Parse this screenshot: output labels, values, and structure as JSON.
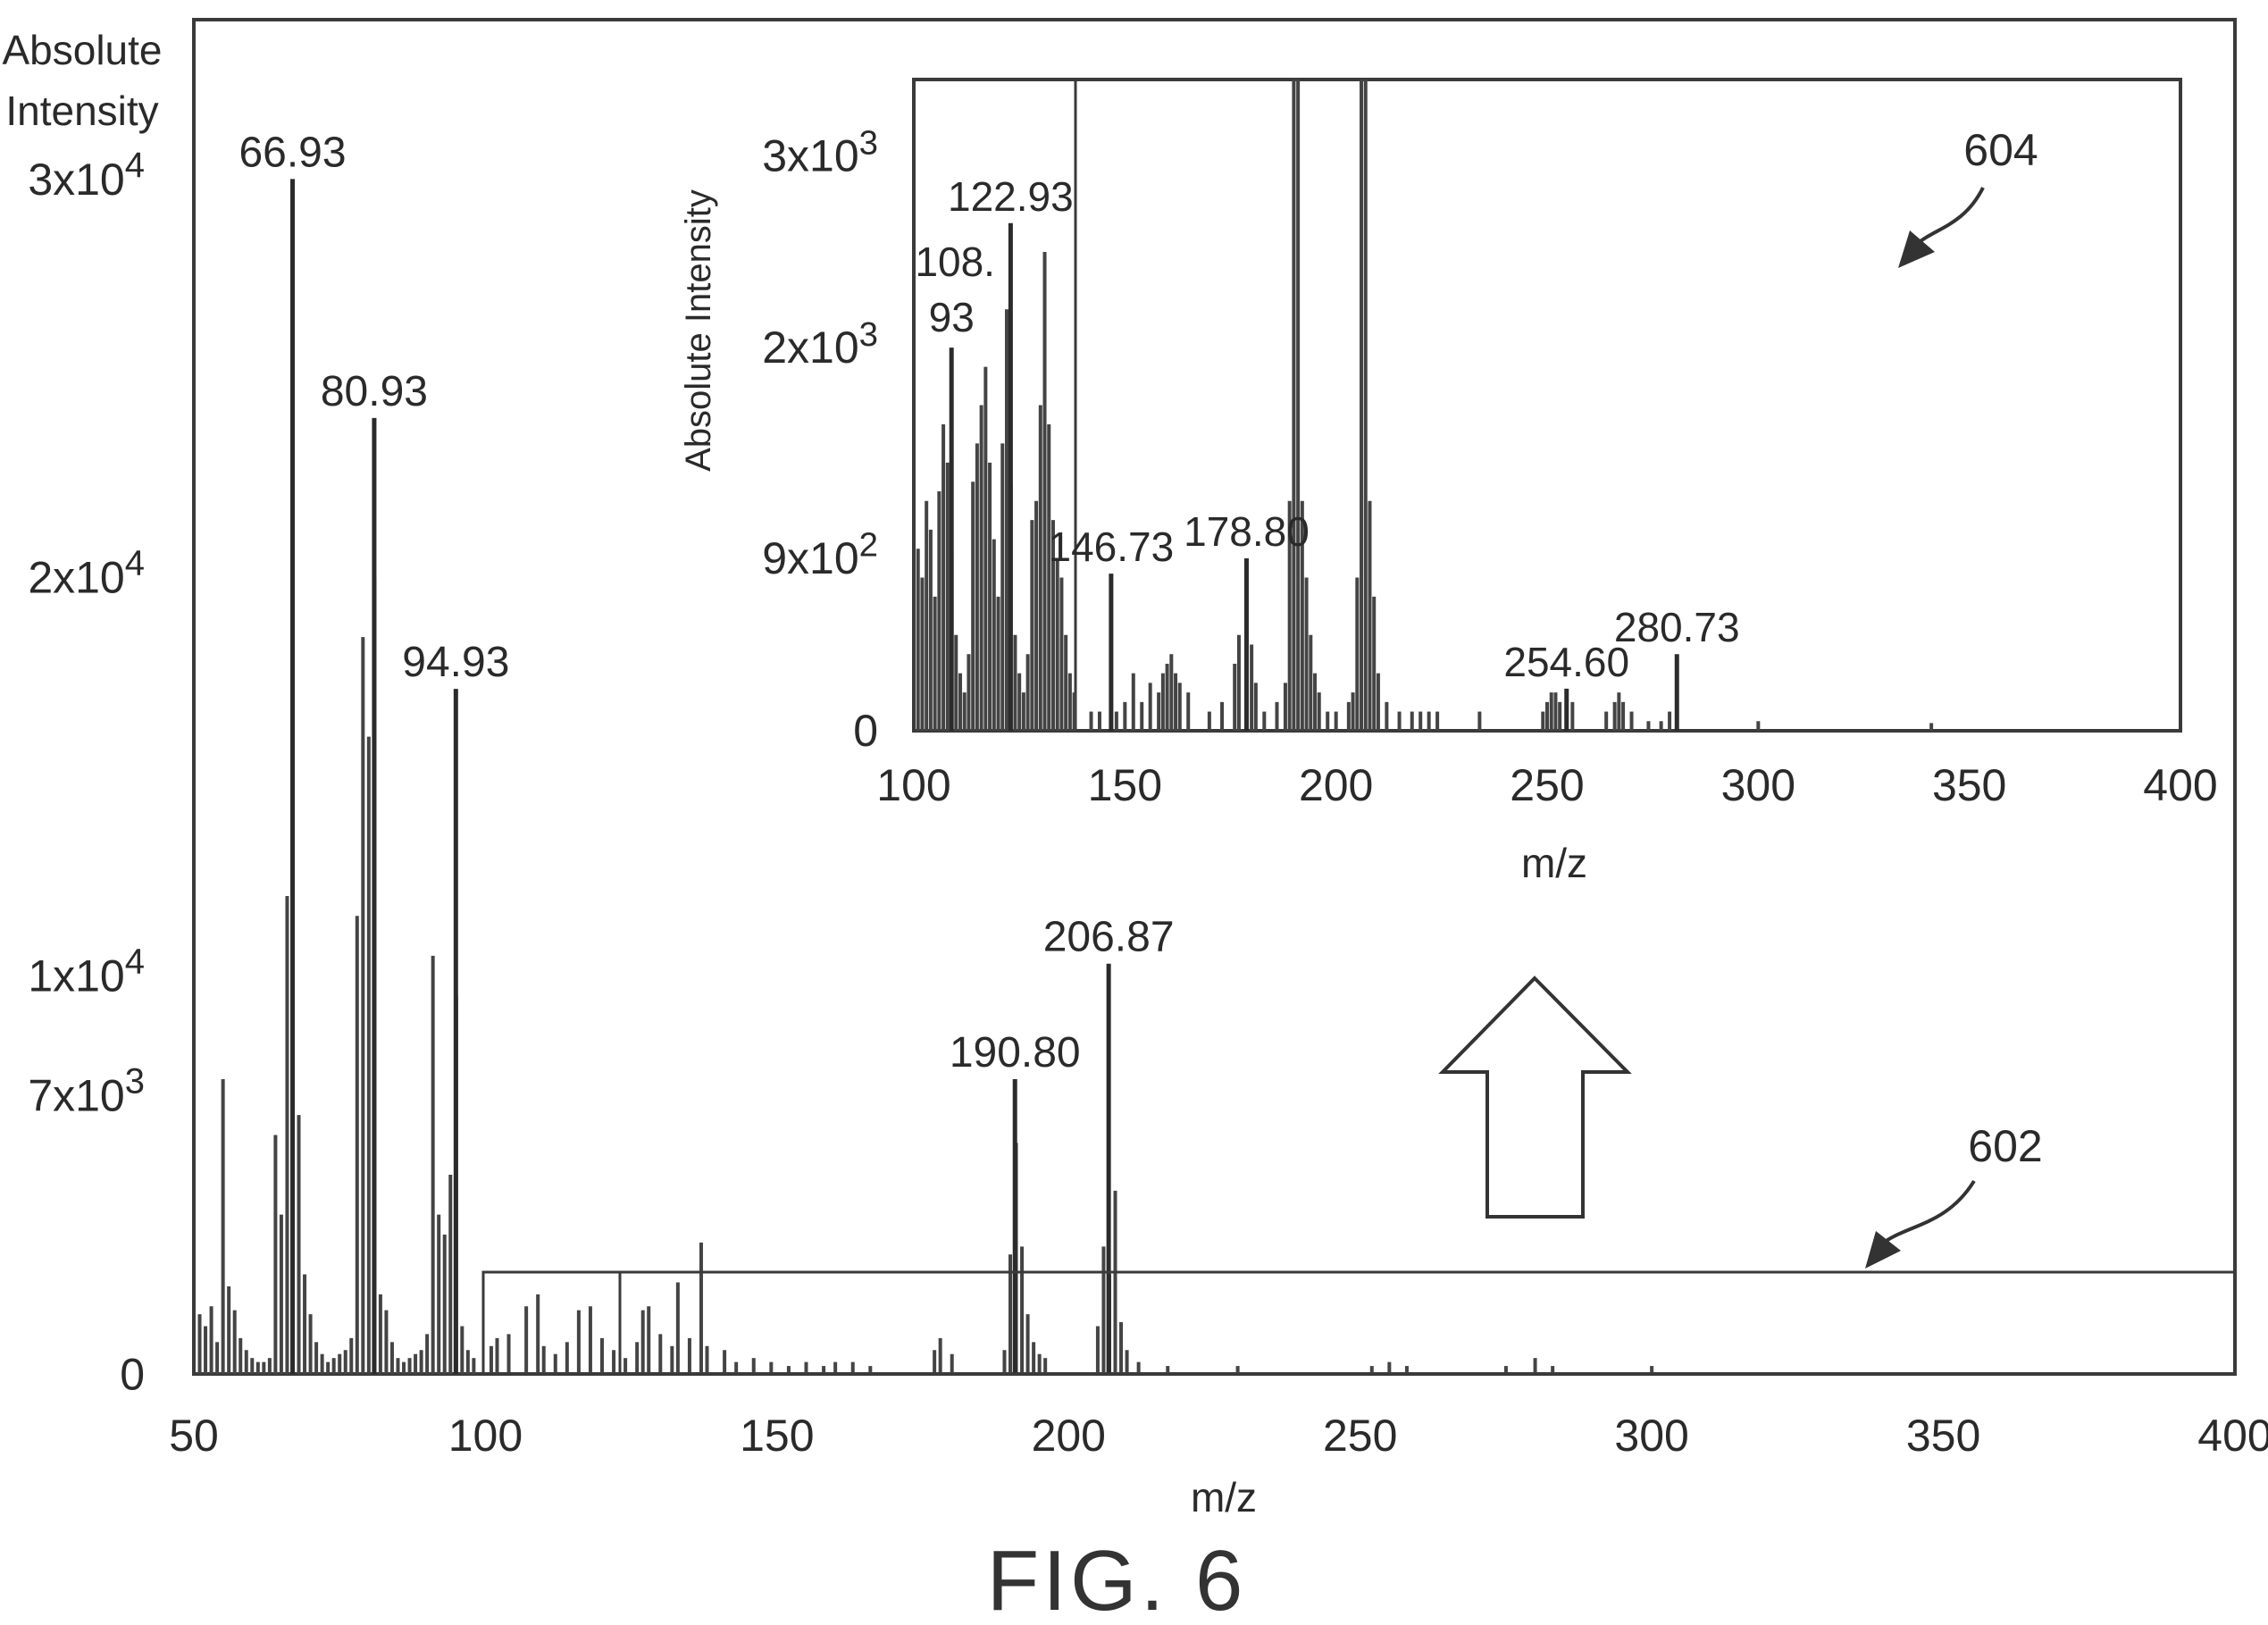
{
  "figure_caption": "FIG. 6",
  "main_plot": {
    "ylabel_line1": "Absolute",
    "ylabel_line2": "Intensity",
    "xlabel": "m/z",
    "reference": "602"
  },
  "inset_plot": {
    "ylabel": "Absolute Intensity",
    "xlabel": "m/z",
    "reference": "604"
  },
  "chart_data": [
    {
      "type": "bar",
      "xlabel": "m/z",
      "ylabel": "Absolute Intensity",
      "xlim": [
        50,
        400
      ],
      "ylim": [
        0,
        34000
      ],
      "x_ticks": [
        "50",
        "100",
        "150",
        "200",
        "250",
        "300",
        "350",
        "400"
      ],
      "y_ticks": [
        {
          "value": 0,
          "base": "0",
          "exp": ""
        },
        {
          "value": 7000,
          "base": "7x10",
          "exp": "3"
        },
        {
          "value": 10000,
          "base": "1x10",
          "exp": "4"
        },
        {
          "value": 20000,
          "base": "2x10",
          "exp": "4"
        },
        {
          "value": 30000,
          "base": "3x10",
          "exp": "4"
        }
      ],
      "peaks": [
        {
          "mz": 66.93,
          "intensity": 30000,
          "label": "66.93"
        },
        {
          "mz": 80.93,
          "intensity": 24000,
          "label": "80.93"
        },
        {
          "mz": 94.93,
          "intensity": 17200,
          "label": "94.93"
        },
        {
          "mz": 190.8,
          "intensity": 7400,
          "label": "190.80"
        },
        {
          "mz": 206.87,
          "intensity": 10300,
          "label": "206.87"
        }
      ],
      "minor_peaks": [
        [
          51,
          1500
        ],
        [
          52,
          1200
        ],
        [
          53,
          1700
        ],
        [
          54,
          800
        ],
        [
          55,
          7400
        ],
        [
          56,
          2200
        ],
        [
          57,
          1600
        ],
        [
          58,
          900
        ],
        [
          59,
          600
        ],
        [
          60,
          400
        ],
        [
          61,
          300
        ],
        [
          62,
          300
        ],
        [
          63,
          400
        ],
        [
          64,
          6000
        ],
        [
          65,
          4000
        ],
        [
          66,
          12000
        ],
        [
          67,
          8000
        ],
        [
          68,
          6500
        ],
        [
          69,
          2500
        ],
        [
          70,
          1500
        ],
        [
          71,
          800
        ],
        [
          72,
          500
        ],
        [
          73,
          300
        ],
        [
          74,
          400
        ],
        [
          75,
          500
        ],
        [
          76,
          600
        ],
        [
          77,
          900
        ],
        [
          78,
          11500
        ],
        [
          79,
          18500
        ],
        [
          80,
          16000
        ],
        [
          81,
          20000
        ],
        [
          82,
          2000
        ],
        [
          83,
          1600
        ],
        [
          84,
          800
        ],
        [
          85,
          400
        ],
        [
          86,
          300
        ],
        [
          87,
          400
        ],
        [
          88,
          500
        ],
        [
          89,
          600
        ],
        [
          90,
          1000
        ],
        [
          91,
          10500
        ],
        [
          92,
          4000
        ],
        [
          93,
          3500
        ],
        [
          94,
          5000
        ],
        [
          95,
          9500
        ],
        [
          96,
          1200
        ],
        [
          97,
          600
        ],
        [
          98,
          400
        ],
        [
          101,
          700
        ],
        [
          102,
          900
        ],
        [
          104,
          1000
        ],
        [
          107,
          1700
        ],
        [
          109,
          2000
        ],
        [
          110,
          700
        ],
        [
          112,
          500
        ],
        [
          114,
          800
        ],
        [
          116,
          1600
        ],
        [
          118,
          1700
        ],
        [
          120,
          900
        ],
        [
          122,
          600
        ],
        [
          124,
          400
        ],
        [
          126,
          800
        ],
        [
          127,
          1600
        ],
        [
          128,
          1700
        ],
        [
          130,
          1000
        ],
        [
          132,
          700
        ],
        [
          133,
          2300
        ],
        [
          135,
          900
        ],
        [
          137,
          3300
        ],
        [
          138,
          700
        ],
        [
          141,
          600
        ],
        [
          143,
          300
        ],
        [
          146,
          400
        ],
        [
          149,
          300
        ],
        [
          152,
          200
        ],
        [
          155,
          300
        ],
        [
          158,
          200
        ],
        [
          160,
          300
        ],
        [
          163,
          300
        ],
        [
          166,
          200
        ],
        [
          177,
          600
        ],
        [
          178,
          900
        ],
        [
          180,
          500
        ],
        [
          189,
          600
        ],
        [
          190,
          3000
        ],
        [
          191,
          5800
        ],
        [
          192,
          3200
        ],
        [
          193,
          1500
        ],
        [
          194,
          800
        ],
        [
          195,
          500
        ],
        [
          196,
          400
        ],
        [
          205,
          1200
        ],
        [
          206,
          3200
        ],
        [
          207,
          2500
        ],
        [
          208,
          4600
        ],
        [
          209,
          1300
        ],
        [
          210,
          600
        ],
        [
          212,
          300
        ],
        [
          217,
          200
        ],
        [
          229,
          200
        ],
        [
          252,
          200
        ],
        [
          255,
          300
        ],
        [
          258,
          200
        ],
        [
          275,
          200
        ],
        [
          280,
          400
        ],
        [
          283,
          200
        ],
        [
          300,
          200
        ]
      ]
    },
    {
      "type": "bar",
      "xlabel": "m/z",
      "ylabel": "Absolute Intensity",
      "xlim": [
        100,
        400
      ],
      "ylim": [
        0,
        3400
      ],
      "x_ticks": [
        "100",
        "150",
        "200",
        "250",
        "300",
        "350",
        "400"
      ],
      "y_ticks": [
        {
          "value": 0,
          "base": "0",
          "exp": ""
        },
        {
          "value": 900,
          "base": "9x10",
          "exp": "2"
        },
        {
          "value": 2000,
          "base": "2x10",
          "exp": "3"
        },
        {
          "value": 3000,
          "base": "3x10",
          "exp": "3"
        }
      ],
      "peaks": [
        {
          "mz": 108.93,
          "intensity": 2000,
          "label_line1": "108.",
          "label_line2": "93"
        },
        {
          "mz": 122.93,
          "intensity": 2650,
          "label": "122.93"
        },
        {
          "mz": 146.73,
          "intensity": 820,
          "label": "146.73"
        },
        {
          "mz": 178.8,
          "intensity": 900,
          "label": "178.80"
        },
        {
          "mz": 254.6,
          "intensity": 220,
          "label": "254.60"
        },
        {
          "mz": 280.73,
          "intensity": 400,
          "label": "280.73"
        }
      ],
      "minor_peaks": [
        [
          101,
          950
        ],
        [
          102,
          800
        ],
        [
          103,
          1200
        ],
        [
          104,
          1050
        ],
        [
          105,
          700
        ],
        [
          106,
          1250
        ],
        [
          107,
          1600
        ],
        [
          108,
          1400
        ],
        [
          109,
          900
        ],
        [
          110,
          500
        ],
        [
          111,
          300
        ],
        [
          112,
          200
        ],
        [
          113,
          400
        ],
        [
          114,
          1300
        ],
        [
          115,
          1500
        ],
        [
          116,
          1700
        ],
        [
          117,
          1900
        ],
        [
          118,
          1400
        ],
        [
          119,
          1000
        ],
        [
          120,
          700
        ],
        [
          121,
          1500
        ],
        [
          122,
          2200
        ],
        [
          123,
          1300
        ],
        [
          124,
          500
        ],
        [
          125,
          300
        ],
        [
          126,
          200
        ],
        [
          127,
          400
        ],
        [
          128,
          1100
        ],
        [
          129,
          1200
        ],
        [
          130,
          1700
        ],
        [
          131,
          2500
        ],
        [
          132,
          1600
        ],
        [
          133,
          1100
        ],
        [
          134,
          900
        ],
        [
          135,
          800
        ],
        [
          136,
          500
        ],
        [
          137,
          300
        ],
        [
          138,
          200
        ],
        [
          142,
          100
        ],
        [
          144,
          100
        ],
        [
          148,
          100
        ],
        [
          150,
          150
        ],
        [
          152,
          300
        ],
        [
          154,
          150
        ],
        [
          156,
          250
        ],
        [
          158,
          200
        ],
        [
          159,
          300
        ],
        [
          160,
          350
        ],
        [
          161,
          400
        ],
        [
          162,
          300
        ],
        [
          163,
          250
        ],
        [
          165,
          200
        ],
        [
          170,
          100
        ],
        [
          173,
          150
        ],
        [
          176,
          350
        ],
        [
          177,
          500
        ],
        [
          180,
          450
        ],
        [
          181,
          250
        ],
        [
          183,
          100
        ],
        [
          186,
          150
        ],
        [
          188,
          250
        ],
        [
          189,
          1200
        ],
        [
          190,
          3400
        ],
        [
          191,
          3400
        ],
        [
          192,
          1200
        ],
        [
          193,
          800
        ],
        [
          194,
          500
        ],
        [
          195,
          300
        ],
        [
          196,
          200
        ],
        [
          198,
          100
        ],
        [
          200,
          100
        ],
        [
          203,
          150
        ],
        [
          204,
          200
        ],
        [
          205,
          800
        ],
        [
          206,
          3400
        ],
        [
          207,
          3400
        ],
        [
          208,
          1200
        ],
        [
          209,
          700
        ],
        [
          210,
          300
        ],
        [
          212,
          150
        ],
        [
          215,
          100
        ],
        [
          218,
          100
        ],
        [
          220,
          100
        ],
        [
          222,
          100
        ],
        [
          224,
          100
        ],
        [
          234,
          100
        ],
        [
          249,
          100
        ],
        [
          250,
          150
        ],
        [
          251,
          200
        ],
        [
          252,
          200
        ],
        [
          253,
          150
        ],
        [
          256,
          150
        ],
        [
          264,
          100
        ],
        [
          266,
          150
        ],
        [
          267,
          200
        ],
        [
          268,
          150
        ],
        [
          270,
          100
        ],
        [
          274,
          50
        ],
        [
          277,
          50
        ],
        [
          279,
          100
        ],
        [
          300,
          50
        ],
        [
          341,
          40
        ]
      ]
    }
  ]
}
